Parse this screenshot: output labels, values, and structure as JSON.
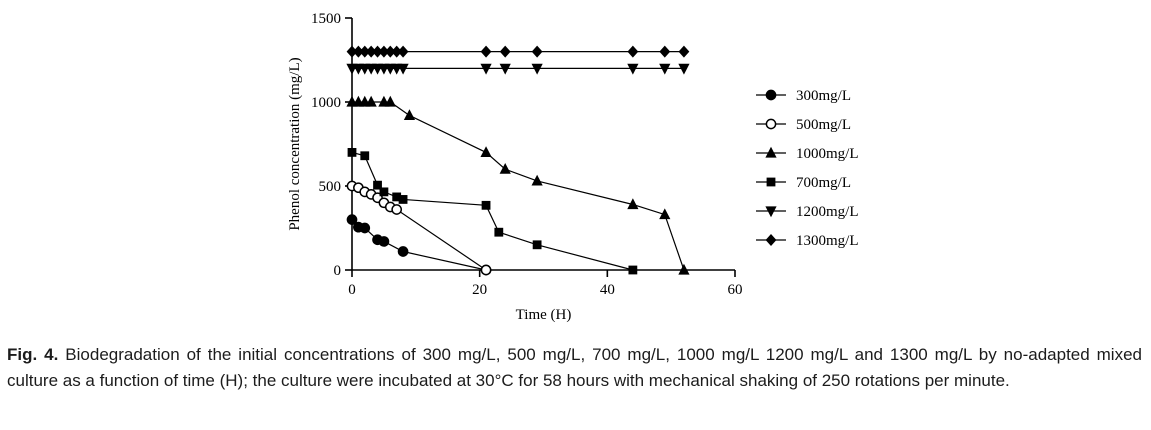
{
  "chart_data": {
    "type": "line",
    "title": "",
    "xlabel": "Time (H)",
    "ylabel": "Phenol concentration (mg/L)",
    "xlim": [
      0,
      60
    ],
    "ylim": [
      0,
      1500
    ],
    "xticks": [
      0,
      20,
      40,
      60
    ],
    "yticks": [
      0,
      500,
      1000,
      1500
    ],
    "grid": false,
    "legend_position": "right",
    "line_color": "#000000",
    "series": [
      {
        "name": "300mg/L",
        "marker": "circle-filled",
        "points": [
          [
            0,
            300
          ],
          [
            1,
            255
          ],
          [
            2,
            250
          ],
          [
            4,
            180
          ],
          [
            5,
            170
          ],
          [
            8,
            110
          ],
          [
            21,
            0
          ]
        ]
      },
      {
        "name": "500mg/L",
        "marker": "circle-open",
        "points": [
          [
            0,
            500
          ],
          [
            1,
            490
          ],
          [
            2,
            465
          ],
          [
            3,
            450
          ],
          [
            4,
            430
          ],
          [
            5,
            400
          ],
          [
            6,
            375
          ],
          [
            7,
            360
          ],
          [
            21,
            0
          ]
        ]
      },
      {
        "name": "1000mg/L",
        "marker": "triangle-up-filled",
        "points": [
          [
            0,
            1000
          ],
          [
            1,
            1000
          ],
          [
            2,
            1000
          ],
          [
            3,
            1000
          ],
          [
            5,
            1000
          ],
          [
            6,
            1000
          ],
          [
            9,
            920
          ],
          [
            21,
            700
          ],
          [
            24,
            600
          ],
          [
            29,
            530
          ],
          [
            44,
            390
          ],
          [
            49,
            330
          ],
          [
            52,
            0
          ]
        ]
      },
      {
        "name": "700mg/L",
        "marker": "square-filled",
        "points": [
          [
            0,
            700
          ],
          [
            2,
            680
          ],
          [
            4,
            505
          ],
          [
            5,
            465
          ],
          [
            7,
            435
          ],
          [
            8,
            420
          ],
          [
            21,
            385
          ],
          [
            23,
            225
          ],
          [
            29,
            150
          ],
          [
            44,
            0
          ]
        ]
      },
      {
        "name": "1200mg/L",
        "marker": "triangle-down-filled",
        "points": [
          [
            0,
            1200
          ],
          [
            1,
            1200
          ],
          [
            2,
            1200
          ],
          [
            3,
            1200
          ],
          [
            4,
            1200
          ],
          [
            5,
            1200
          ],
          [
            6,
            1200
          ],
          [
            7,
            1200
          ],
          [
            8,
            1200
          ],
          [
            21,
            1200
          ],
          [
            24,
            1200
          ],
          [
            29,
            1200
          ],
          [
            44,
            1200
          ],
          [
            49,
            1200
          ],
          [
            52,
            1200
          ]
        ]
      },
      {
        "name": "1300mg/L",
        "marker": "diamond-filled",
        "points": [
          [
            0,
            1300
          ],
          [
            1,
            1300
          ],
          [
            2,
            1300
          ],
          [
            3,
            1300
          ],
          [
            4,
            1300
          ],
          [
            5,
            1300
          ],
          [
            6,
            1300
          ],
          [
            7,
            1300
          ],
          [
            8,
            1300
          ],
          [
            21,
            1300
          ],
          [
            24,
            1300
          ],
          [
            29,
            1300
          ],
          [
            44,
            1300
          ],
          [
            49,
            1300
          ],
          [
            52,
            1300
          ]
        ]
      }
    ]
  },
  "caption": {
    "label": "Fig. 4.",
    "text": "Biodegradation of the initial concentrations of 300 mg/L, 500 mg/L, 700 mg/L, 1000 mg/L 1200 mg/L and 1300 mg/L by no-adapted mixed culture as a function of time (H); the culture were incubated at 30°C for 58 hours with mechanical shaking of 250 rotations per minute."
  }
}
